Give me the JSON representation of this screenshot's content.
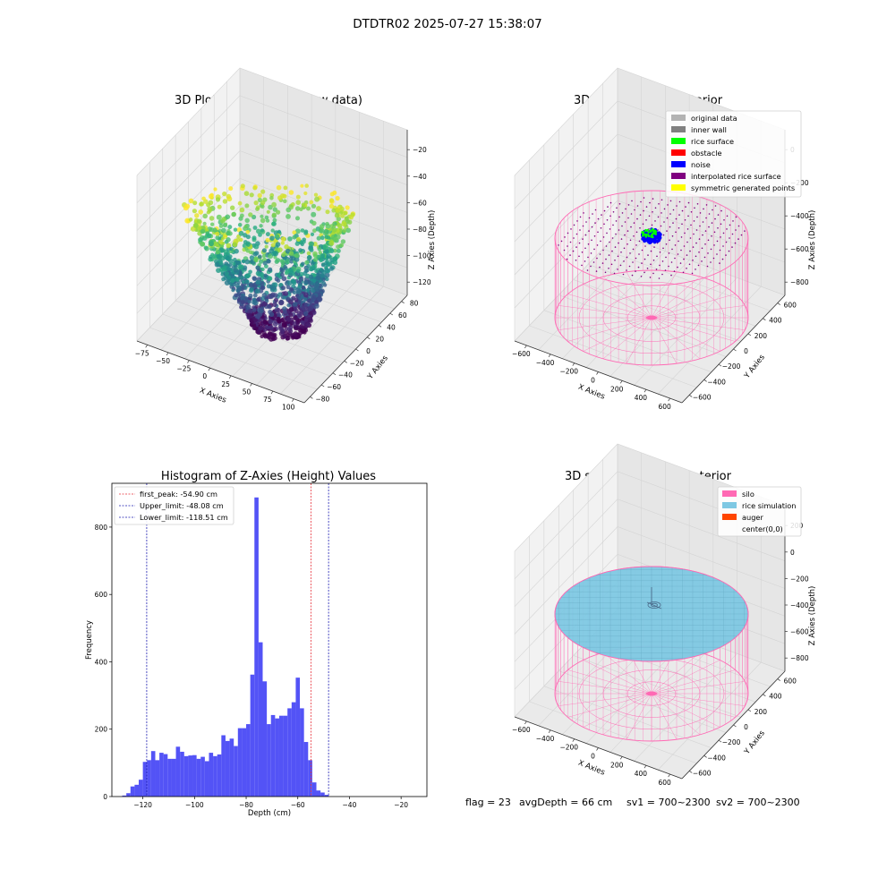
{
  "suptitle": "DTDTR02 2025-07-27 15:38:07",
  "colors": {
    "hist_bar": "#4a4af5",
    "peak_line": "#e8303a",
    "limit_line": "#1b1bb0",
    "silo": "#ff69b4",
    "rice_simulation": "#7ec8e3",
    "auger": "#ff4500",
    "original_data": "#b3b3b3",
    "inner_wall": "#808080",
    "rice_surface": "#00ff00",
    "obstacle": "#ff0000",
    "noise": "#0000ff",
    "interpolated": "#800080",
    "symmetric": "#ffff00"
  },
  "chart_data": [
    {
      "type": "scatter",
      "title": "3D Plot of Silo Interior(row data)",
      "xlabel": "X Axies",
      "ylabel": "Y Axies",
      "zlabel": "Z Axies (Depth)",
      "x_ticks": [
        "−75",
        "−50",
        "−25",
        "0",
        "25",
        "50",
        "75",
        "100"
      ],
      "y_ticks": [
        "−80",
        "−60",
        "−40",
        "−20",
        "0",
        "20",
        "40",
        "60",
        "80"
      ],
      "z_ticks": [
        "−20",
        "−40",
        "−60",
        "−80",
        "−100",
        "−120"
      ],
      "xlim": [
        -90,
        100
      ],
      "ylim": [
        -80,
        90
      ],
      "zlim": [
        -130,
        -15
      ],
      "colormap": "viridis"
    },
    {
      "type": "scatter",
      "title": "3D classify of Silo Interior",
      "xlabel": "X Axies",
      "ylabel": "Y Axies",
      "zlabel": "Z Axies (Depth)",
      "x_ticks": [
        "−600",
        "−400",
        "−200",
        "0",
        "200",
        "400",
        "600"
      ],
      "y_ticks": [
        "−600",
        "−400",
        "−200",
        "0",
        "200",
        "400",
        "600"
      ],
      "z_ticks": [
        "0",
        "−200",
        "−400",
        "−600",
        "−800"
      ],
      "legend": [
        "original data",
        "inner wall",
        "rice surface",
        "obstacle",
        "noise",
        "interpolated rice surface",
        "symmetric generated points"
      ],
      "legend_position": "top-right"
    },
    {
      "type": "bar",
      "title": "Histogram of Z-Axies (Height) Values",
      "xlabel": "Depth (cm)",
      "ylabel": "Frequency",
      "xlim": [
        -132,
        -10
      ],
      "ylim": [
        0,
        930
      ],
      "x_ticks": [
        -120,
        -100,
        -80,
        -60,
        -40,
        -20
      ],
      "y_ticks": [
        0,
        200,
        400,
        600,
        800
      ],
      "bin_start": -128,
      "bin_width": 1.6,
      "values": [
        3,
        10,
        30,
        35,
        50,
        103,
        108,
        135,
        108,
        130,
        126,
        112,
        112,
        148,
        133,
        120,
        122,
        123,
        112,
        118,
        105,
        130,
        120,
        125,
        182,
        165,
        172,
        150,
        203,
        203,
        215,
        362,
        888,
        458,
        342,
        215,
        242,
        232,
        240,
        240,
        262,
        280,
        353,
        262,
        162,
        108,
        42,
        18,
        12,
        5
      ],
      "lines": [
        {
          "label": "first_peak: -54.90 cm",
          "x": -54.9,
          "kind": "peak"
        },
        {
          "label": "Upper_limit: -48.08 cm",
          "x": -48.08,
          "kind": "limit"
        },
        {
          "label": "Lower_limit: -118.51 cm",
          "x": -118.51,
          "kind": "limit"
        }
      ],
      "legend_position": "top-left"
    },
    {
      "type": "scatter",
      "title": "3D simulation of Silo Interior",
      "xlabel": "X Axies",
      "ylabel": "Y Axies",
      "zlabel": "Z Axies (Depth)",
      "x_ticks": [
        "−600",
        "−400",
        "−200",
        "0",
        "200",
        "400",
        "600"
      ],
      "y_ticks": [
        "−600",
        "−400",
        "−200",
        "0",
        "200",
        "400",
        "600"
      ],
      "z_ticks": [
        "200",
        "0",
        "−200",
        "−400",
        "−600",
        "−800"
      ],
      "legend": [
        "silo",
        "rice simulation",
        "auger",
        "center(0,0)"
      ],
      "legend_position": "top-right"
    }
  ],
  "status": {
    "flag": "flag = 23",
    "avg_depth": "avgDepth = 66 cm",
    "sv1": "sv1 = 700~2300",
    "sv2": "sv2 = 700~2300"
  }
}
